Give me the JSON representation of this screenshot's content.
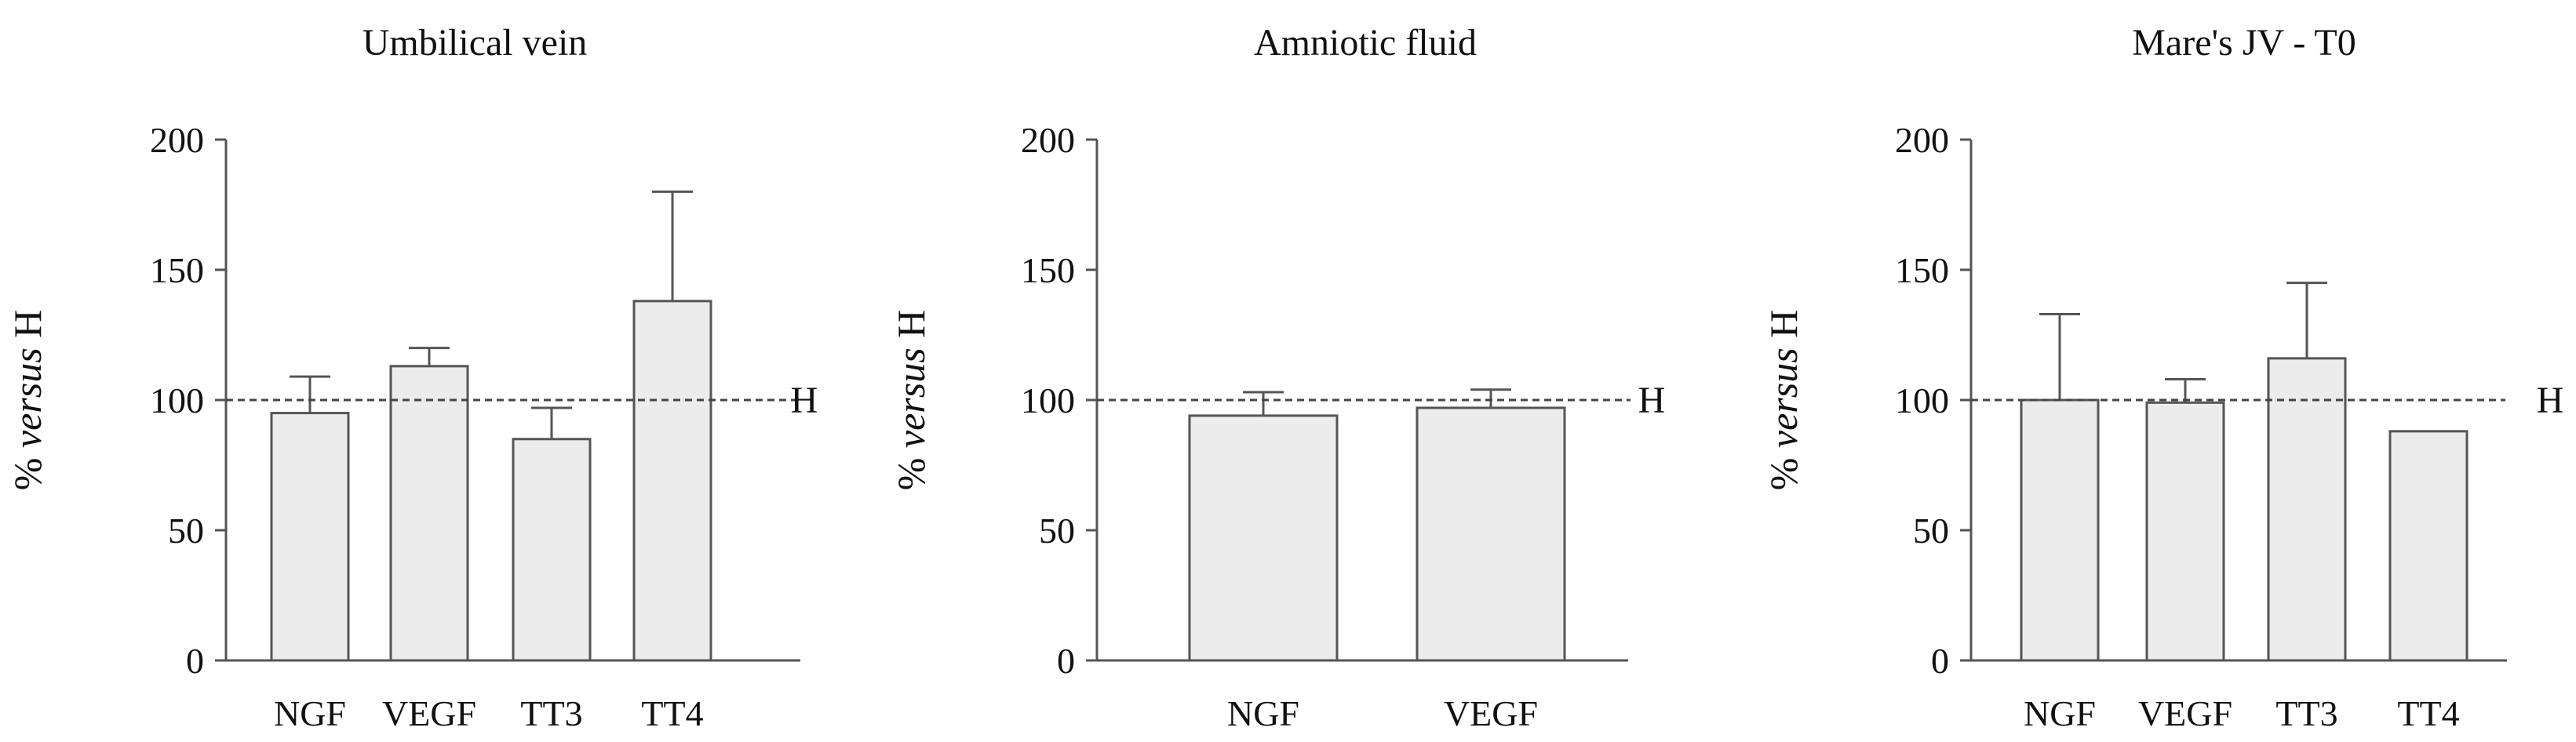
{
  "figure": {
    "reference_label": "H",
    "y_label_prefix": "% ",
    "y_label_italic": "versus",
    "y_label_suffix": " H"
  },
  "chart_data": [
    {
      "type": "bar",
      "title": "Umbilical vein",
      "categories": [
        "NGF",
        "VEGF",
        "TT3",
        "TT4"
      ],
      "values": [
        95,
        113,
        85,
        138
      ],
      "error_upper": [
        14,
        7,
        12,
        42
      ],
      "ylabel": "% versus H",
      "xlabel": "",
      "ylim": [
        0,
        200
      ],
      "yticks": [
        0,
        50,
        100,
        150,
        200
      ],
      "reference_line": {
        "value": 100,
        "label": "H",
        "style": "dashed"
      },
      "bar_color": "#ececec",
      "edge_color": "#555555",
      "grid": false
    },
    {
      "type": "bar",
      "title": "Amniotic fluid",
      "categories": [
        "NGF",
        "VEGF"
      ],
      "values": [
        94,
        97
      ],
      "error_upper": [
        9,
        7
      ],
      "ylabel": "% versus H",
      "xlabel": "",
      "ylim": [
        0,
        200
      ],
      "yticks": [
        0,
        50,
        100,
        150,
        200
      ],
      "reference_line": {
        "value": 100,
        "label": "H",
        "style": "dashed"
      },
      "bar_color": "#ececec",
      "edge_color": "#555555",
      "grid": false
    },
    {
      "type": "bar",
      "title": "Mare's JV - T0",
      "categories": [
        "NGF",
        "VEGF",
        "TT3",
        "TT4"
      ],
      "values": [
        100,
        99,
        116,
        88
      ],
      "error_upper": [
        33,
        9,
        29,
        0
      ],
      "ylabel": "% versus H",
      "xlabel": "",
      "ylim": [
        0,
        200
      ],
      "yticks": [
        0,
        50,
        100,
        150,
        200
      ],
      "reference_line": {
        "value": 100,
        "label": "H",
        "style": "dashed"
      },
      "bar_color": "#ececec",
      "edge_color": "#555555",
      "grid": false
    }
  ]
}
